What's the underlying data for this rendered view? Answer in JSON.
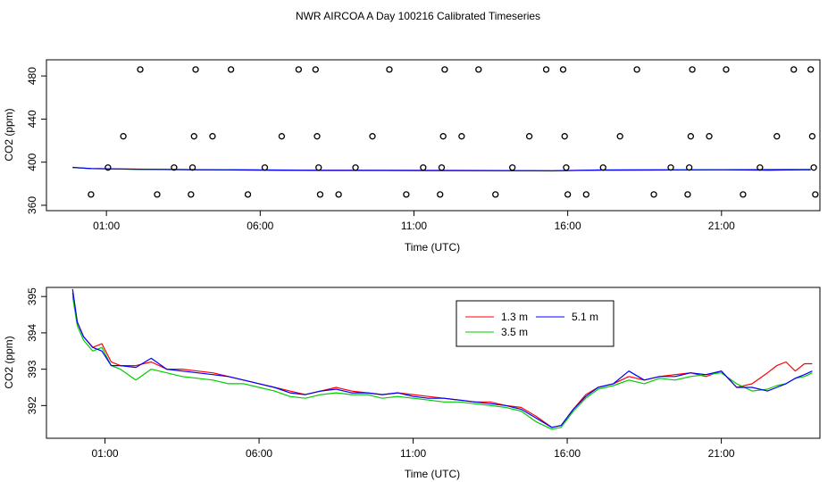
{
  "figure": {
    "title": "NWR AIRCOA A  Day 100216  Calibrated Timeseries"
  },
  "chart_data": [
    {
      "type": "scatter",
      "xlabel": "Time (UTC)",
      "ylabel": "CO2 (ppm)",
      "x_ticks": [
        {
          "value": 1,
          "label": "01:00"
        },
        {
          "value": 6,
          "label": "06:00"
        },
        {
          "value": 11,
          "label": "11:00"
        },
        {
          "value": 16,
          "label": "16:00"
        },
        {
          "value": 21,
          "label": "21:00"
        }
      ],
      "y_ticks": [
        360,
        400,
        440,
        480
      ],
      "xlim": [
        -0.95,
        24.2
      ],
      "ylim": [
        355,
        495
      ],
      "calibration_points": [
        {
          "x": 0.5,
          "y": 370
        },
        {
          "x": 1.05,
          "y": 395
        },
        {
          "x": 1.55,
          "y": 424
        },
        {
          "x": 2.1,
          "y": 486
        },
        {
          "x": 2.65,
          "y": 370
        },
        {
          "x": 3.2,
          "y": 395
        },
        {
          "x": 3.75,
          "y": 370
        },
        {
          "x": 3.8,
          "y": 395
        },
        {
          "x": 3.85,
          "y": 424
        },
        {
          "x": 3.9,
          "y": 486
        },
        {
          "x": 4.45,
          "y": 424
        },
        {
          "x": 5.05,
          "y": 486
        },
        {
          "x": 5.6,
          "y": 370
        },
        {
          "x": 6.15,
          "y": 395
        },
        {
          "x": 6.7,
          "y": 424
        },
        {
          "x": 7.25,
          "y": 486
        },
        {
          "x": 7.8,
          "y": 486
        },
        {
          "x": 7.85,
          "y": 424
        },
        {
          "x": 7.9,
          "y": 395
        },
        {
          "x": 7.95,
          "y": 370
        },
        {
          "x": 8.55,
          "y": 370
        },
        {
          "x": 9.1,
          "y": 395
        },
        {
          "x": 9.65,
          "y": 424
        },
        {
          "x": 10.2,
          "y": 486
        },
        {
          "x": 10.75,
          "y": 370
        },
        {
          "x": 11.3,
          "y": 395
        },
        {
          "x": 11.85,
          "y": 370
        },
        {
          "x": 11.9,
          "y": 395
        },
        {
          "x": 11.95,
          "y": 424
        },
        {
          "x": 12.0,
          "y": 486
        },
        {
          "x": 12.55,
          "y": 424
        },
        {
          "x": 13.1,
          "y": 486
        },
        {
          "x": 13.65,
          "y": 370
        },
        {
          "x": 14.2,
          "y": 395
        },
        {
          "x": 14.75,
          "y": 424
        },
        {
          "x": 15.3,
          "y": 486
        },
        {
          "x": 15.85,
          "y": 486
        },
        {
          "x": 15.9,
          "y": 424
        },
        {
          "x": 15.95,
          "y": 395
        },
        {
          "x": 16.0,
          "y": 370
        },
        {
          "x": 16.6,
          "y": 370
        },
        {
          "x": 17.15,
          "y": 395
        },
        {
          "x": 17.7,
          "y": 424
        },
        {
          "x": 18.25,
          "y": 486
        },
        {
          "x": 18.8,
          "y": 370
        },
        {
          "x": 19.35,
          "y": 395
        },
        {
          "x": 19.9,
          "y": 370
        },
        {
          "x": 19.95,
          "y": 395
        },
        {
          "x": 20.0,
          "y": 424
        },
        {
          "x": 20.05,
          "y": 486
        },
        {
          "x": 20.6,
          "y": 424
        },
        {
          "x": 21.15,
          "y": 486
        },
        {
          "x": 21.7,
          "y": 370
        },
        {
          "x": 22.25,
          "y": 395
        },
        {
          "x": 22.8,
          "y": 424
        },
        {
          "x": 23.35,
          "y": 486
        },
        {
          "x": 23.9,
          "y": 486
        },
        {
          "x": 23.95,
          "y": 424
        },
        {
          "x": 24.0,
          "y": 395
        },
        {
          "x": 24.05,
          "y": 370
        }
      ],
      "series": [
        {
          "color": "#ff0000",
          "x": [
            -0.1,
            0.5,
            2,
            4,
            6,
            8,
            10,
            12,
            14,
            15.5,
            17,
            19,
            21,
            22.5,
            23.9
          ],
          "y": [
            395,
            394,
            393.5,
            393,
            392.8,
            392.5,
            392.4,
            392.3,
            392.2,
            392,
            392.7,
            392.8,
            393,
            393.2,
            393.2
          ]
        },
        {
          "color": "#00cc00",
          "x": [
            -0.1,
            0.5,
            2,
            4,
            6,
            8,
            10,
            12,
            14,
            15.5,
            17,
            19,
            21,
            22.5,
            23.9
          ],
          "y": [
            395,
            394,
            393.3,
            392.9,
            392.6,
            392.3,
            392.3,
            392.2,
            392.1,
            391.9,
            392.6,
            392.7,
            392.9,
            392.7,
            392.9
          ]
        },
        {
          "color": "#0000ff",
          "x": [
            -0.1,
            0.5,
            2,
            4,
            6,
            8,
            10,
            12,
            14,
            15.5,
            17,
            19,
            21,
            22.5,
            23.9
          ],
          "y": [
            395.2,
            394.1,
            393.4,
            393,
            392.7,
            392.4,
            392.4,
            392.3,
            392.2,
            392,
            392.7,
            392.8,
            392.9,
            392.6,
            393
          ]
        }
      ]
    },
    {
      "type": "line",
      "xlabel": "Time (UTC)",
      "ylabel": "CO2 (ppm)",
      "x_ticks": [
        {
          "value": 1,
          "label": "01:00"
        },
        {
          "value": 6,
          "label": "06:00"
        },
        {
          "value": 11,
          "label": "11:00"
        },
        {
          "value": 16,
          "label": "16:00"
        },
        {
          "value": 21,
          "label": "21:00"
        }
      ],
      "y_ticks": [
        392,
        393,
        394,
        395
      ],
      "xlim": [
        -0.9,
        24.2
      ],
      "ylim": [
        391.1,
        395.25
      ],
      "legend": {
        "position": "top-right",
        "entries": [
          {
            "label": "1.3 m",
            "color": "#ff0000"
          },
          {
            "label": "3.5 m",
            "color": "#00cc00"
          },
          {
            "label": "5.1 m",
            "color": "#0000ff"
          }
        ]
      },
      "series": [
        {
          "name": "1.3 m",
          "color": "#ff0000",
          "x": [
            -0.05,
            0.1,
            0.3,
            0.6,
            0.9,
            1.2,
            1.5,
            2.0,
            2.5,
            3.0,
            3.5,
            4.0,
            4.5,
            5.0,
            5.5,
            6.0,
            6.5,
            7.0,
            7.5,
            8.0,
            8.5,
            9.0,
            9.5,
            10.0,
            10.5,
            11.0,
            11.5,
            12.0,
            12.5,
            13.0,
            13.5,
            14.0,
            14.5,
            15.0,
            15.5,
            15.8,
            16.2,
            16.6,
            17.0,
            17.5,
            18.0,
            18.5,
            19.0,
            19.5,
            20.0,
            20.5,
            21.0,
            21.5,
            22.0,
            22.5,
            22.8,
            23.1,
            23.4,
            23.7,
            23.95
          ],
          "y": [
            395.1,
            394.3,
            393.9,
            393.6,
            393.7,
            393.2,
            393.1,
            393.1,
            393.2,
            393.0,
            393.0,
            392.95,
            392.9,
            392.8,
            392.7,
            392.6,
            392.5,
            392.4,
            392.3,
            392.4,
            392.5,
            392.4,
            392.35,
            392.3,
            392.35,
            392.3,
            392.25,
            392.2,
            392.15,
            392.1,
            392.1,
            392.0,
            391.95,
            391.7,
            391.4,
            391.45,
            391.9,
            392.3,
            392.5,
            392.6,
            392.8,
            392.7,
            392.8,
            392.85,
            392.9,
            392.8,
            392.95,
            392.5,
            392.6,
            392.9,
            393.1,
            393.2,
            392.95,
            393.15,
            393.15
          ]
        },
        {
          "name": "3.5 m",
          "color": "#00cc00",
          "x": [
            -0.05,
            0.1,
            0.3,
            0.6,
            0.9,
            1.2,
            1.5,
            2.0,
            2.5,
            3.0,
            3.5,
            4.0,
            4.5,
            5.0,
            5.5,
            6.0,
            6.5,
            7.0,
            7.5,
            8.0,
            8.5,
            9.0,
            9.5,
            10.0,
            10.5,
            11.0,
            11.5,
            12.0,
            12.5,
            13.0,
            13.5,
            14.0,
            14.5,
            15.0,
            15.5,
            15.8,
            16.2,
            16.6,
            17.0,
            17.5,
            18.0,
            18.5,
            19.0,
            19.5,
            20.0,
            20.5,
            21.0,
            21.5,
            22.0,
            22.5,
            22.8,
            23.1,
            23.4,
            23.7,
            23.95
          ],
          "y": [
            395.0,
            394.2,
            393.8,
            393.5,
            393.6,
            393.1,
            393.0,
            392.7,
            393.0,
            392.9,
            392.8,
            392.75,
            392.7,
            392.6,
            392.6,
            392.5,
            392.4,
            392.25,
            392.2,
            392.3,
            392.35,
            392.3,
            392.3,
            392.2,
            392.25,
            392.2,
            392.15,
            392.1,
            392.1,
            392.05,
            392.0,
            391.95,
            391.85,
            391.55,
            391.35,
            391.4,
            391.85,
            392.2,
            392.45,
            392.55,
            392.7,
            392.6,
            392.75,
            392.7,
            392.8,
            392.85,
            392.9,
            392.6,
            392.4,
            392.45,
            392.55,
            392.6,
            392.75,
            392.8,
            392.9
          ]
        },
        {
          "name": "5.1 m",
          "color": "#0000ff",
          "x": [
            -0.05,
            0.1,
            0.3,
            0.6,
            0.9,
            1.2,
            1.5,
            2.0,
            2.5,
            3.0,
            3.5,
            4.0,
            4.5,
            5.0,
            5.5,
            6.0,
            6.5,
            7.0,
            7.5,
            8.0,
            8.5,
            9.0,
            9.5,
            10.0,
            10.5,
            11.0,
            11.5,
            12.0,
            12.5,
            13.0,
            13.5,
            14.0,
            14.5,
            15.0,
            15.5,
            15.8,
            16.2,
            16.6,
            17.0,
            17.5,
            18.0,
            18.5,
            19.0,
            19.5,
            20.0,
            20.5,
            21.0,
            21.5,
            22.0,
            22.5,
            22.8,
            23.1,
            23.4,
            23.7,
            23.95
          ],
          "y": [
            395.2,
            394.3,
            393.9,
            393.6,
            393.5,
            393.1,
            393.1,
            393.05,
            393.3,
            393.0,
            392.95,
            392.9,
            392.85,
            392.8,
            392.7,
            392.6,
            392.5,
            392.35,
            392.3,
            392.4,
            392.45,
            392.35,
            392.35,
            392.3,
            392.35,
            392.25,
            392.2,
            392.2,
            392.15,
            392.1,
            392.05,
            392.0,
            391.9,
            391.65,
            391.4,
            391.45,
            391.9,
            392.25,
            392.5,
            392.6,
            392.95,
            392.7,
            392.8,
            392.8,
            392.9,
            392.85,
            392.95,
            392.5,
            392.5,
            392.4,
            392.5,
            392.6,
            392.75,
            392.85,
            392.95
          ]
        }
      ]
    }
  ]
}
